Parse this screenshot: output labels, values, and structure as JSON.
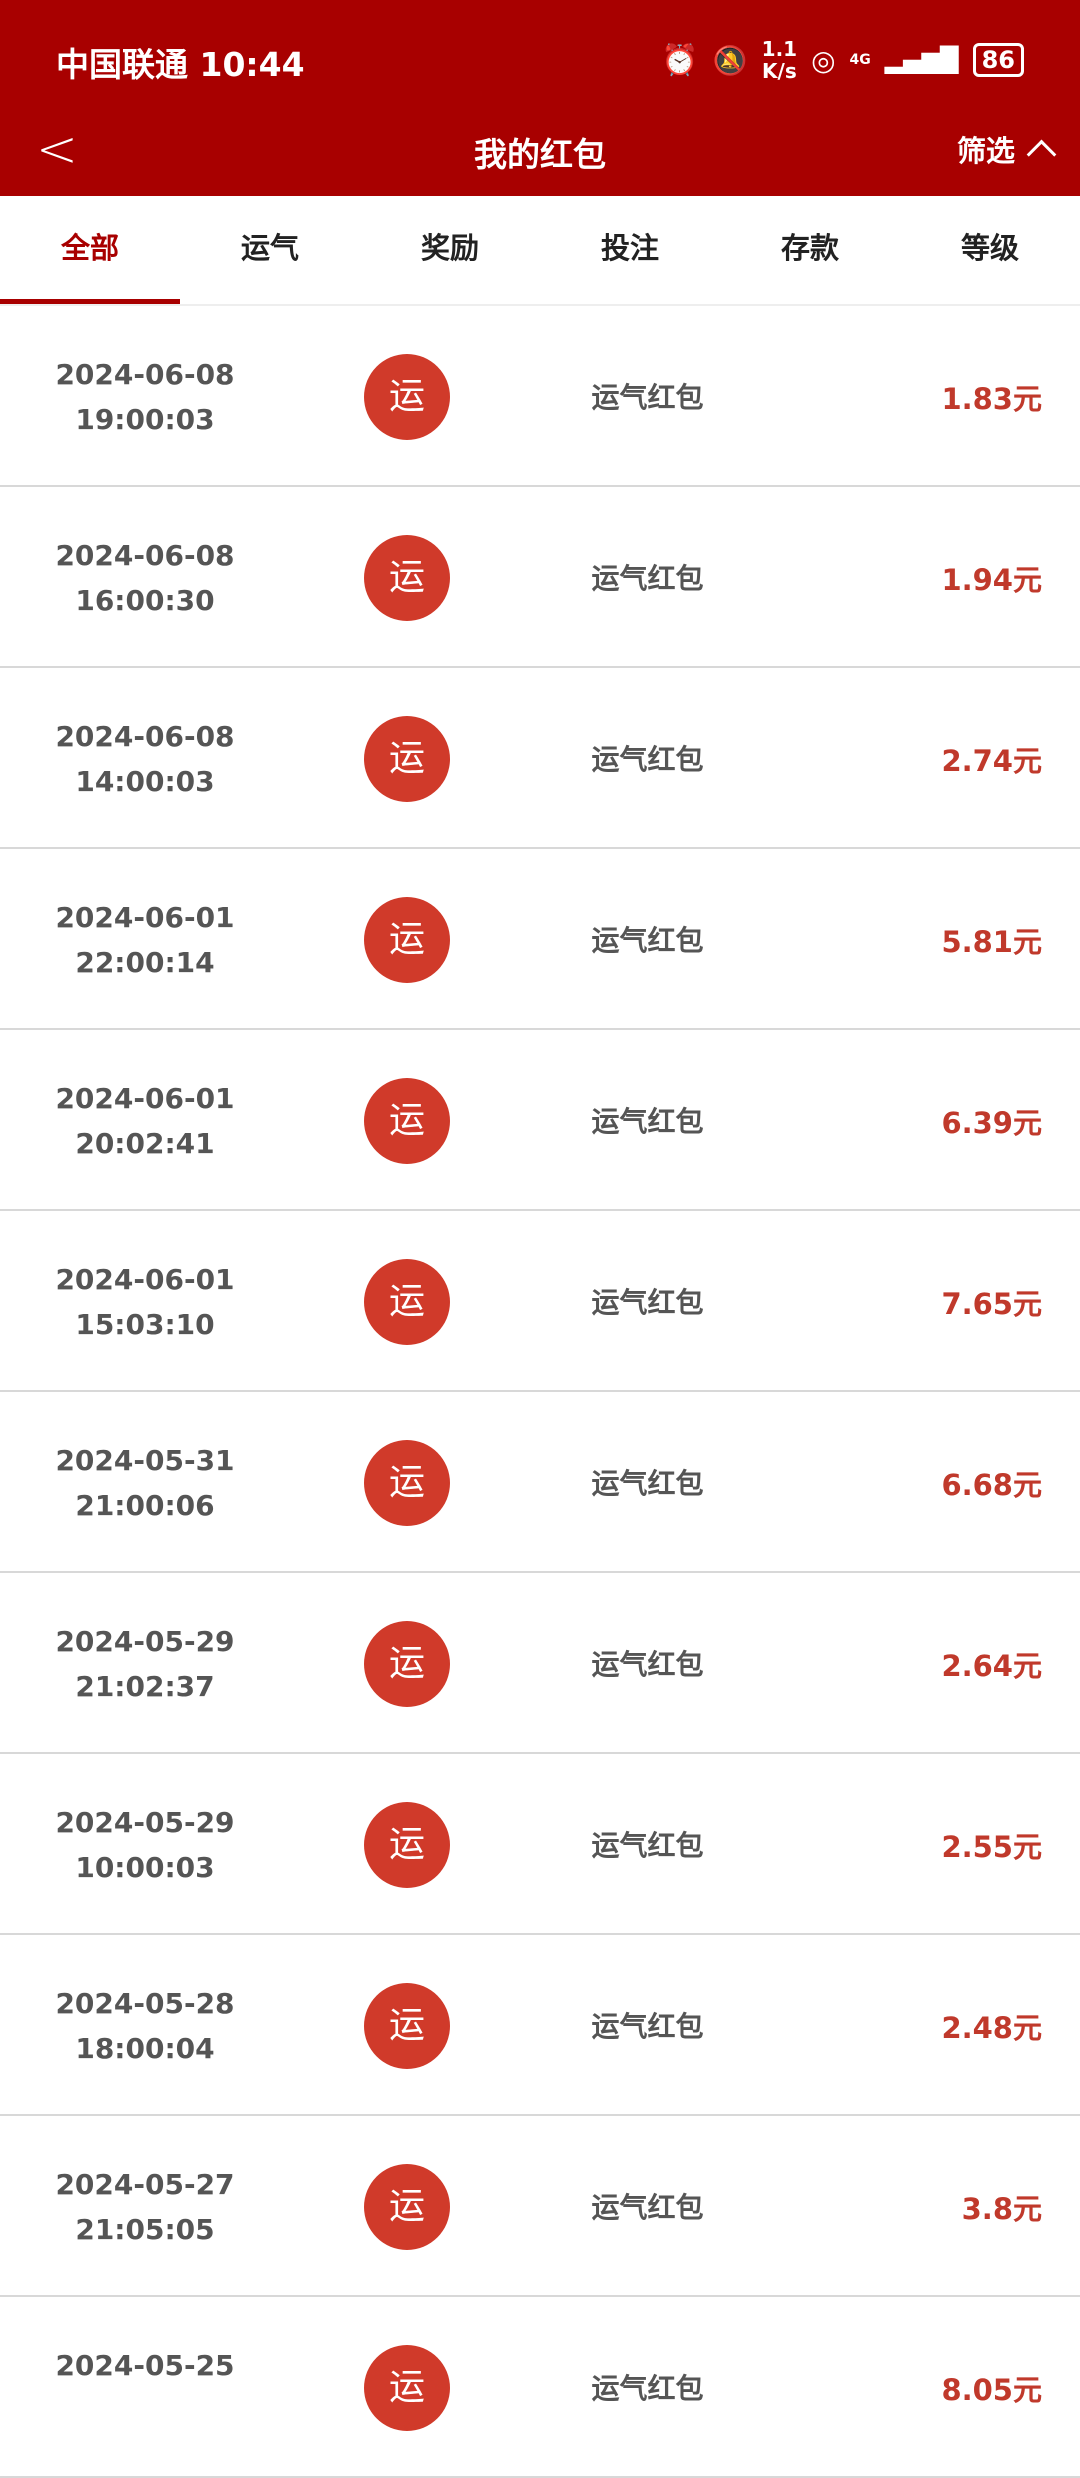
{
  "status_bar": {
    "carrier": "中国联通",
    "time": "10:44",
    "net_speed_value": "1.1",
    "net_speed_unit": "K/s",
    "network": "4G",
    "battery": "86"
  },
  "nav": {
    "back_icon": "chevron-left",
    "title": "我的红包",
    "filter_label": "筛选",
    "filter_icon": "chevron-up"
  },
  "tabs": [
    {
      "label": "全部",
      "active": true
    },
    {
      "label": "运气"
    },
    {
      "label": "奖励"
    },
    {
      "label": "投注"
    },
    {
      "label": "存款"
    },
    {
      "label": "等级"
    }
  ],
  "colors": {
    "brand": "#a80000",
    "badge": "#d03a2a",
    "amount": "#c0392b"
  },
  "rows": [
    {
      "date": "2024-06-08",
      "time": "19:00:03",
      "badge": "运",
      "label": "运气红包",
      "amount": "1.83元"
    },
    {
      "date": "2024-06-08",
      "time": "16:00:30",
      "badge": "运",
      "label": "运气红包",
      "amount": "1.94元"
    },
    {
      "date": "2024-06-08",
      "time": "14:00:03",
      "badge": "运",
      "label": "运气红包",
      "amount": "2.74元"
    },
    {
      "date": "2024-06-01",
      "time": "22:00:14",
      "badge": "运",
      "label": "运气红包",
      "amount": "5.81元"
    },
    {
      "date": "2024-06-01",
      "time": "20:02:41",
      "badge": "运",
      "label": "运气红包",
      "amount": "6.39元"
    },
    {
      "date": "2024-06-01",
      "time": "15:03:10",
      "badge": "运",
      "label": "运气红包",
      "amount": "7.65元"
    },
    {
      "date": "2024-05-31",
      "time": "21:00:06",
      "badge": "运",
      "label": "运气红包",
      "amount": "6.68元"
    },
    {
      "date": "2024-05-29",
      "time": "21:02:37",
      "badge": "运",
      "label": "运气红包",
      "amount": "2.64元"
    },
    {
      "date": "2024-05-29",
      "time": "10:00:03",
      "badge": "运",
      "label": "运气红包",
      "amount": "2.55元"
    },
    {
      "date": "2024-05-28",
      "time": "18:00:04",
      "badge": "运",
      "label": "运气红包",
      "amount": "2.48元"
    },
    {
      "date": "2024-05-27",
      "time": "21:05:05",
      "badge": "运",
      "label": "运气红包",
      "amount": "3.8元"
    },
    {
      "date": "2024-05-25",
      "time": "",
      "badge": "运",
      "label": "运气红包",
      "amount": "8.05元"
    }
  ]
}
